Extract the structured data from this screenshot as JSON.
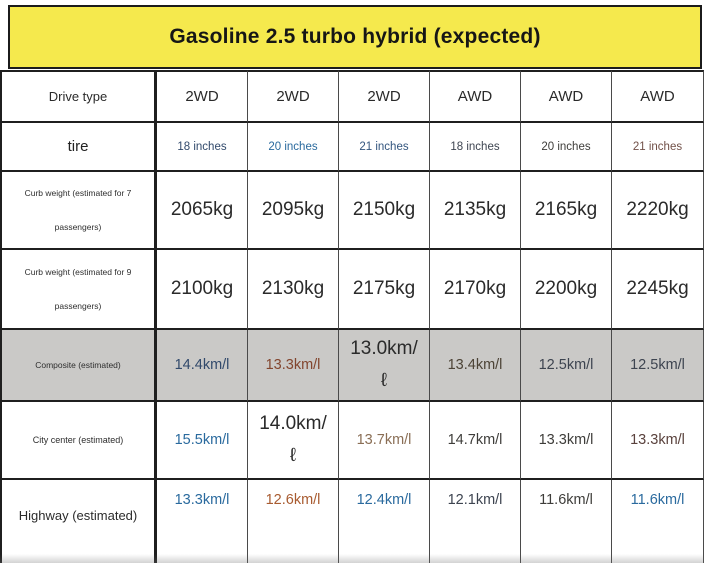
{
  "title": "Gasoline 2.5 turbo hybrid (expected)",
  "colors": {
    "banner_bg": "#f5e94d",
    "banner_border": "#1b1b1b",
    "grid_line": "#1f1f1f",
    "grid_line_light": "#4a4a4a",
    "composite_row_bg": "#cac9c7",
    "ink_dark": "#2a2a2a",
    "ink_navy": "#31496b",
    "ink_blue": "#2a6a9e",
    "ink_steel": "#33557e",
    "ink_slate": "#3d4450",
    "ink_gray": "#3e3d3a",
    "ink_brown": "#715048",
    "ink_rust": "#a85b30",
    "ink_rust_dark": "#82452e",
    "ink_tan": "#8a6e55",
    "ink_olive": "#4c4336",
    "ink_maroon": "#5a423d"
  },
  "table": {
    "rows": [
      {
        "label": "Drive type",
        "values": [
          "2WD",
          "2WD",
          "2WD",
          "AWD",
          "AWD",
          "AWD"
        ]
      },
      {
        "label": "tire",
        "values": [
          "18 inches",
          "20 inches",
          "21 inches",
          "18 inches",
          "20 inches",
          "21 inches"
        ]
      },
      {
        "label": "Curb weight (estimated for 7\npassengers)",
        "values": [
          "2065kg",
          "2095kg",
          "2150kg",
          "2135kg",
          "2165kg",
          "2220kg"
        ]
      },
      {
        "label": "Curb weight (estimated for 9\npassengers)",
        "values": [
          "2100kg",
          "2130kg",
          "2175kg",
          "2170kg",
          "2200kg",
          "2245kg"
        ]
      },
      {
        "label": "Composite (estimated)",
        "values": [
          "14.4km/l",
          "13.3km/l",
          "13.0km/\nℓ",
          "13.4km/l",
          "12.5km/l",
          "12.5km/l"
        ]
      },
      {
        "label": "City center (estimated)",
        "values": [
          "15.5km/l",
          "14.0km/\nℓ",
          "13.7km/l",
          "14.7km/l",
          "13.3km/l",
          "13.3km/l"
        ]
      },
      {
        "label": "Highway (estimated)",
        "values": [
          "13.3km/l",
          "12.6km/l",
          "12.4km/l",
          "12.1km/l",
          "11.6km/l",
          "11.6km/l"
        ]
      }
    ]
  }
}
